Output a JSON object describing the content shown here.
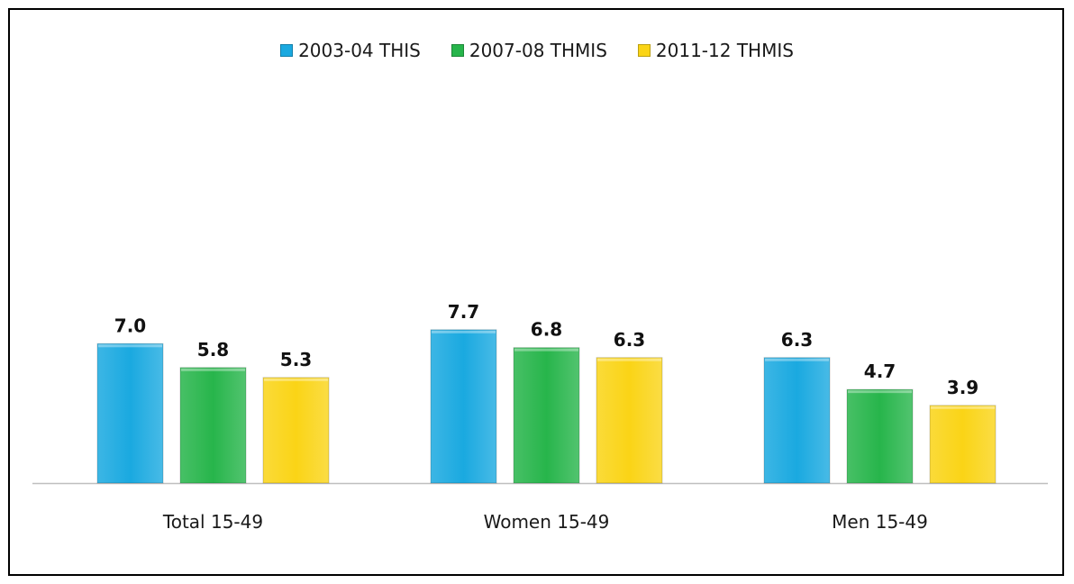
{
  "chart_data": {
    "type": "bar",
    "title": "",
    "xlabel": "",
    "ylabel": "",
    "ylim": [
      0,
      10
    ],
    "grid": false,
    "legend_position": "top-center",
    "categories": [
      "Total 15-49",
      "Women 15-49",
      "Men 15-49"
    ],
    "series": [
      {
        "name": "2003-04 THIS",
        "color": "#1aa9e0",
        "values": [
          7.0,
          7.7,
          6.3
        ],
        "labels": [
          "7.0",
          "7.7",
          "6.3"
        ]
      },
      {
        "name": "2007-08 THMIS",
        "color": "#27b54b",
        "values": [
          5.8,
          6.8,
          4.7
        ],
        "labels": [
          "5.8",
          "6.8",
          "4.7"
        ]
      },
      {
        "name": "2011-12 THMIS",
        "color": "#fad416",
        "values": [
          5.3,
          6.3,
          3.9
        ],
        "labels": [
          "5.3",
          "6.3",
          "3.9"
        ]
      }
    ]
  }
}
